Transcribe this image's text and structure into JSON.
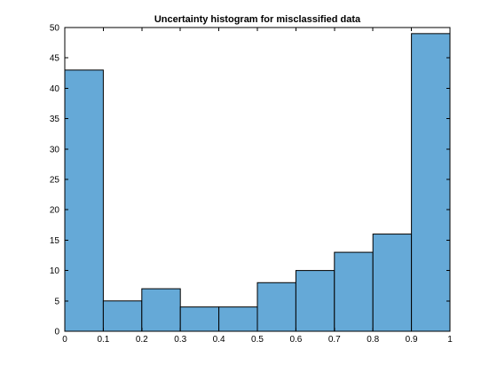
{
  "chart_data": {
    "type": "bar",
    "title": "Uncertainty histogram for misclassified data",
    "xlabel": "",
    "ylabel": "",
    "bin_edges": [
      0,
      0.1,
      0.2,
      0.3,
      0.4,
      0.5,
      0.6,
      0.7,
      0.8,
      0.9,
      1
    ],
    "categories": [
      "0-0.1",
      "0.1-0.2",
      "0.2-0.3",
      "0.3-0.4",
      "0.4-0.5",
      "0.5-0.6",
      "0.6-0.7",
      "0.7-0.8",
      "0.8-0.9",
      "0.9-1"
    ],
    "values": [
      43,
      5,
      7,
      4,
      4,
      8,
      10,
      13,
      16,
      49
    ],
    "xlim": [
      0,
      1
    ],
    "ylim": [
      0,
      50
    ],
    "x_ticks": [
      "0",
      "0.1",
      "0.2",
      "0.3",
      "0.4",
      "0.5",
      "0.6",
      "0.7",
      "0.8",
      "0.9",
      "1"
    ],
    "y_ticks": [
      "0",
      "5",
      "10",
      "15",
      "20",
      "25",
      "30",
      "35",
      "40",
      "45",
      "50"
    ],
    "bar_color": "#65a9d7",
    "grid": false,
    "legend": "none"
  }
}
